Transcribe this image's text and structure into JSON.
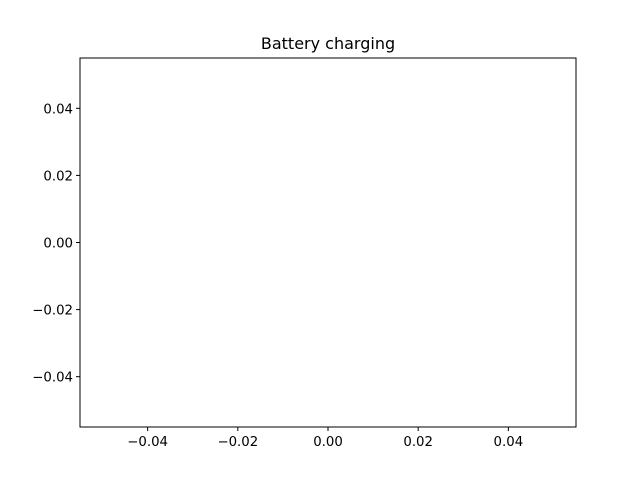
{
  "chart_data": {
    "type": "line",
    "title": "Battery charging",
    "xlabel": "",
    "ylabel": "",
    "series": [],
    "xlim": [
      -0.055,
      0.055
    ],
    "ylim": [
      -0.055,
      0.055
    ],
    "xticks": [
      -0.04,
      -0.02,
      0.0,
      0.02,
      0.04
    ],
    "xtick_labels": [
      "−0.04",
      "−0.02",
      "0.00",
      "0.02",
      "0.04"
    ],
    "yticks": [
      -0.04,
      -0.02,
      0.0,
      0.02,
      0.04
    ],
    "ytick_labels": [
      "−0.04",
      "−0.02",
      "0.00",
      "0.02",
      "0.04"
    ],
    "grid": false,
    "legend": false
  }
}
